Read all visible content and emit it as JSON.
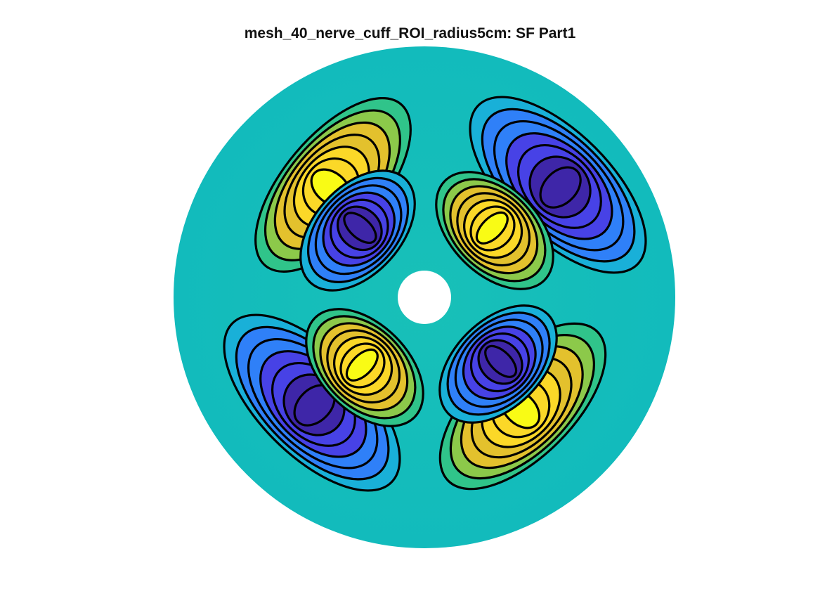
{
  "figure": {
    "title": "mesh_40_nerve_cuff_ROI_radius5cm: SF Part1"
  },
  "plot": {
    "type": "filled-contour",
    "domain": "annulus",
    "lobe_count": 8,
    "contour_levels": [
      -1.0,
      -0.9,
      -0.75,
      -0.6,
      -0.45,
      -0.3,
      -0.15,
      0,
      0.15,
      0.3,
      0.45,
      0.6,
      0.75,
      0.9,
      1.0
    ],
    "contour_line_color": "#000000",
    "colormap": [
      "#3e26a8",
      "#4742e6",
      "#2f80f8",
      "#19b0d8",
      "#11bfb5",
      "#30c48a",
      "#8cc94a",
      "#e3c12d",
      "#fbd828",
      "#f9fb15"
    ],
    "background_color": "#14bdb9",
    "hole_color": "#ffffff"
  }
}
